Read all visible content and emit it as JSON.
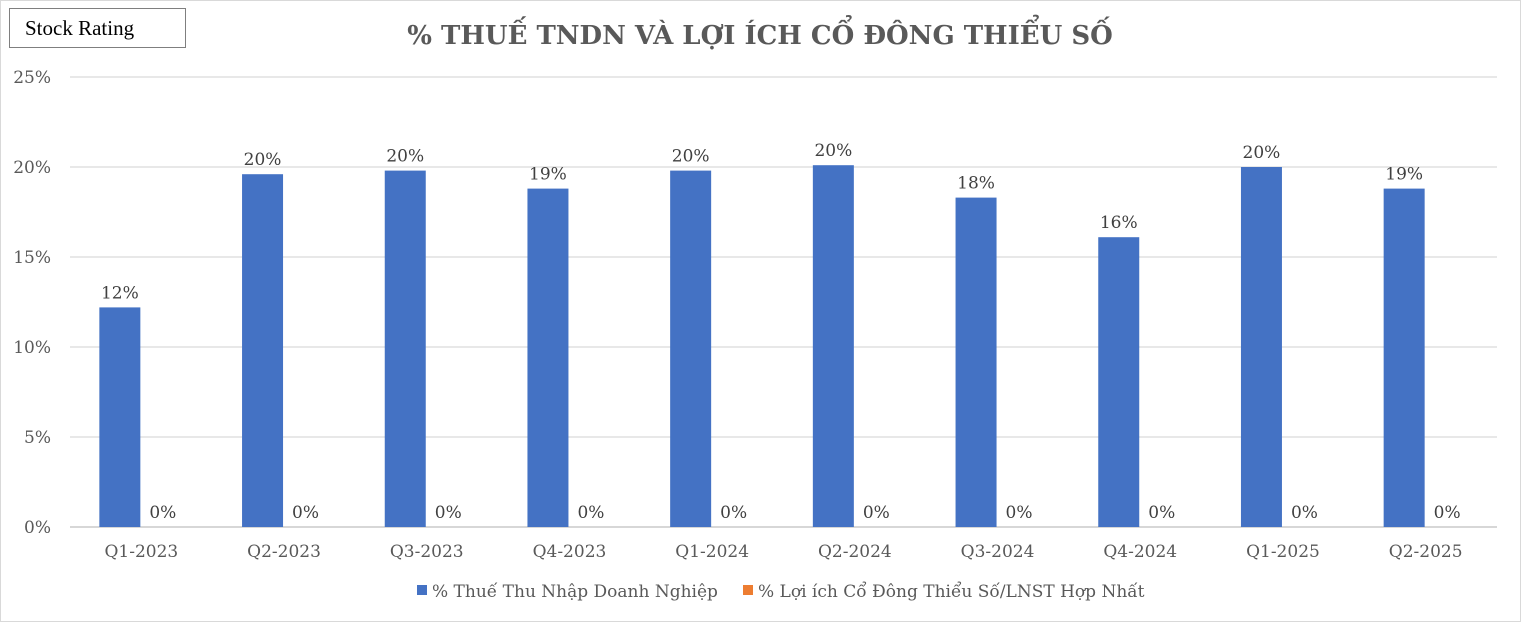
{
  "badge": {
    "label": "Stock Rating"
  },
  "chart_data": {
    "type": "bar",
    "title": "% THUẾ TNDN VÀ LỢI ÍCH CỔ ĐÔNG THIỂU SỐ",
    "xlabel": "",
    "ylabel": "",
    "ylim": [
      0,
      25
    ],
    "yticks": [
      "0%",
      "5%",
      "10%",
      "15%",
      "20%",
      "25%"
    ],
    "ytick_values": [
      0,
      5,
      10,
      15,
      20,
      25
    ],
    "grid": true,
    "legend_position": "bottom",
    "categories": [
      "Q1-2023",
      "Q2-2023",
      "Q3-2023",
      "Q4-2023",
      "Q1-2024",
      "Q2-2024",
      "Q3-2024",
      "Q4-2024",
      "Q1-2025",
      "Q2-2025"
    ],
    "series": [
      {
        "name": "% Thuế Thu Nhập Doanh Nghiệp",
        "color": "#4472c4",
        "values": [
          12.2,
          19.6,
          19.8,
          18.8,
          19.8,
          20.1,
          18.3,
          16.1,
          20.0,
          18.8
        ],
        "labels": [
          "12%",
          "20%",
          "20%",
          "19%",
          "20%",
          "20%",
          "18%",
          "16%",
          "20%",
          "19%"
        ]
      },
      {
        "name": "% Lợi ích Cổ Đông Thiểu Số/LNST Hợp Nhất",
        "color": "#ed7d31",
        "values": [
          0,
          0,
          0,
          0,
          0,
          0,
          0,
          0,
          0,
          0
        ],
        "labels": [
          "0%",
          "0%",
          "0%",
          "0%",
          "0%",
          "0%",
          "0%",
          "0%",
          "0%",
          "0%"
        ]
      }
    ]
  }
}
